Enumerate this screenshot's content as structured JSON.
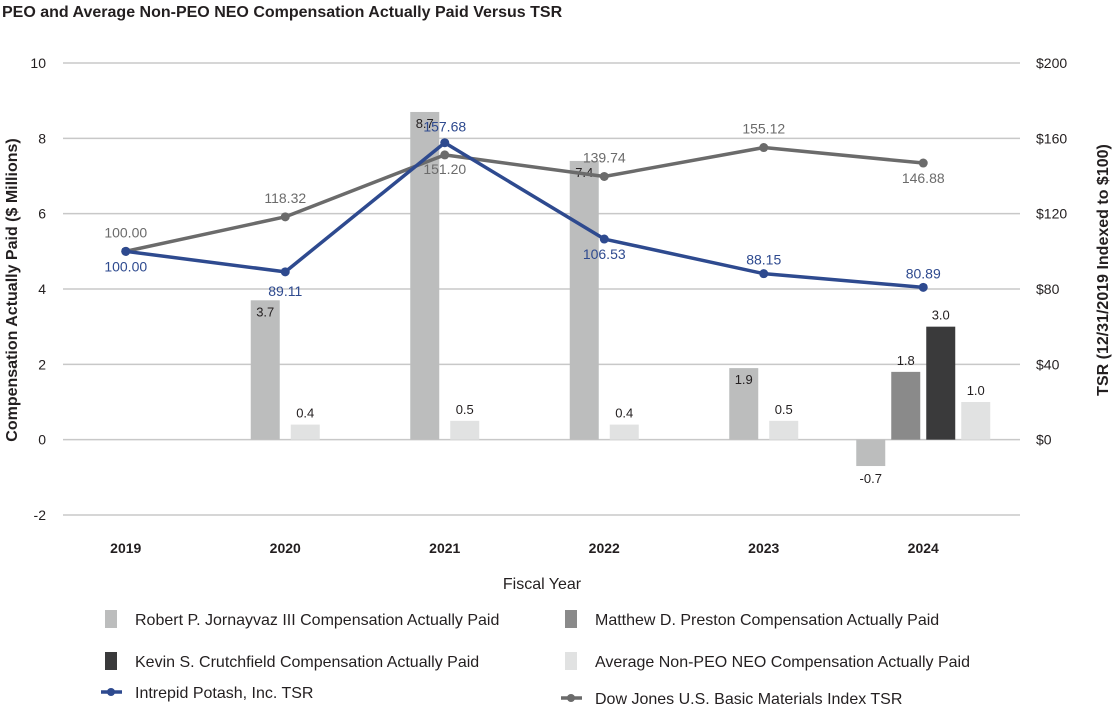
{
  "chart_data": {
    "type": "bar",
    "title": "PEO and Average Non-PEO NEO Compensation Actually Paid Versus TSR",
    "xlabel": "Fiscal Year",
    "ylabel": "Compensation Actually Paid ($ Millions)",
    "y2label": "TSR (12/31/2019 Indexed to $100)",
    "ylim": [
      -2,
      10
    ],
    "yticks": [
      "-2",
      "0",
      "2",
      "4",
      "6",
      "8",
      "10"
    ],
    "y2lim": [
      -40,
      200
    ],
    "y2ticks": [
      "$0",
      "$40",
      "$80",
      "$120",
      "$160",
      "$200"
    ],
    "categories": [
      "2019",
      "2020",
      "2021",
      "2022",
      "2023",
      "2024"
    ],
    "bar_series": [
      {
        "name": "Robert P. Jornayvaz III Compensation Actually Paid",
        "color": "#bcbdbd",
        "values": [
          null,
          3.7,
          8.7,
          7.4,
          1.9,
          -0.7
        ],
        "labels": [
          null,
          "3.7",
          "8.7",
          "7.4",
          "1.9",
          "-0.7"
        ]
      },
      {
        "name": "Matthew D. Preston Compensation Actually Paid",
        "color": "#8a8a8a",
        "values": [
          null,
          null,
          null,
          null,
          null,
          1.8
        ],
        "labels": [
          null,
          null,
          null,
          null,
          null,
          "1.8"
        ]
      },
      {
        "name": "Kevin S. Crutchfield Compensation Actually Paid",
        "color": "#3a3a3b",
        "values": [
          null,
          null,
          null,
          null,
          null,
          3.0
        ],
        "labels": [
          null,
          null,
          null,
          null,
          null,
          "3.0"
        ]
      },
      {
        "name": "Average Non-PEO NEO Compensation Actually Paid",
        "color": "#e1e2e2",
        "values": [
          null,
          0.4,
          0.5,
          0.4,
          0.5,
          1.0
        ],
        "labels": [
          null,
          "0.4",
          "0.5",
          "0.4",
          "0.5",
          "1.0"
        ]
      }
    ],
    "line_series": [
      {
        "name": "Intrepid Potash, Inc. TSR",
        "color": "#2e4a8f",
        "values": [
          100.0,
          89.11,
          157.68,
          106.53,
          88.15,
          80.89
        ],
        "labels": [
          "100.00",
          "89.11",
          "157.68",
          "106.53",
          "88.15",
          "80.89"
        ]
      },
      {
        "name": "Dow Jones U.S. Basic Materials Index TSR",
        "color": "#6b6b6b",
        "values": [
          100.0,
          118.32,
          151.2,
          139.74,
          155.12,
          146.88
        ],
        "labels": [
          "100.00",
          "118.32",
          "151.20",
          "139.74",
          "155.12",
          "146.88"
        ]
      }
    ],
    "legend": [
      {
        "name": "Robert P. Jornayvaz III Compensation Actually Paid",
        "kind": "bar",
        "color": "#bcbdbd"
      },
      {
        "name": "Matthew D. Preston Compensation Actually Paid",
        "kind": "bar",
        "color": "#8a8a8a"
      },
      {
        "name": "Kevin S. Crutchfield Compensation Actually Paid",
        "kind": "bar",
        "color": "#3a3a3b"
      },
      {
        "name": "Average Non-PEO NEO Compensation Actually Paid",
        "kind": "bar",
        "color": "#e1e2e2"
      },
      {
        "name": "Intrepid Potash, Inc. TSR",
        "kind": "line",
        "color": "#2e4a8f"
      },
      {
        "name": "Dow Jones U.S. Basic Materials Index TSR",
        "kind": "line",
        "color": "#6b6b6b"
      }
    ],
    "grid": true,
    "legend_position": "bottom"
  }
}
